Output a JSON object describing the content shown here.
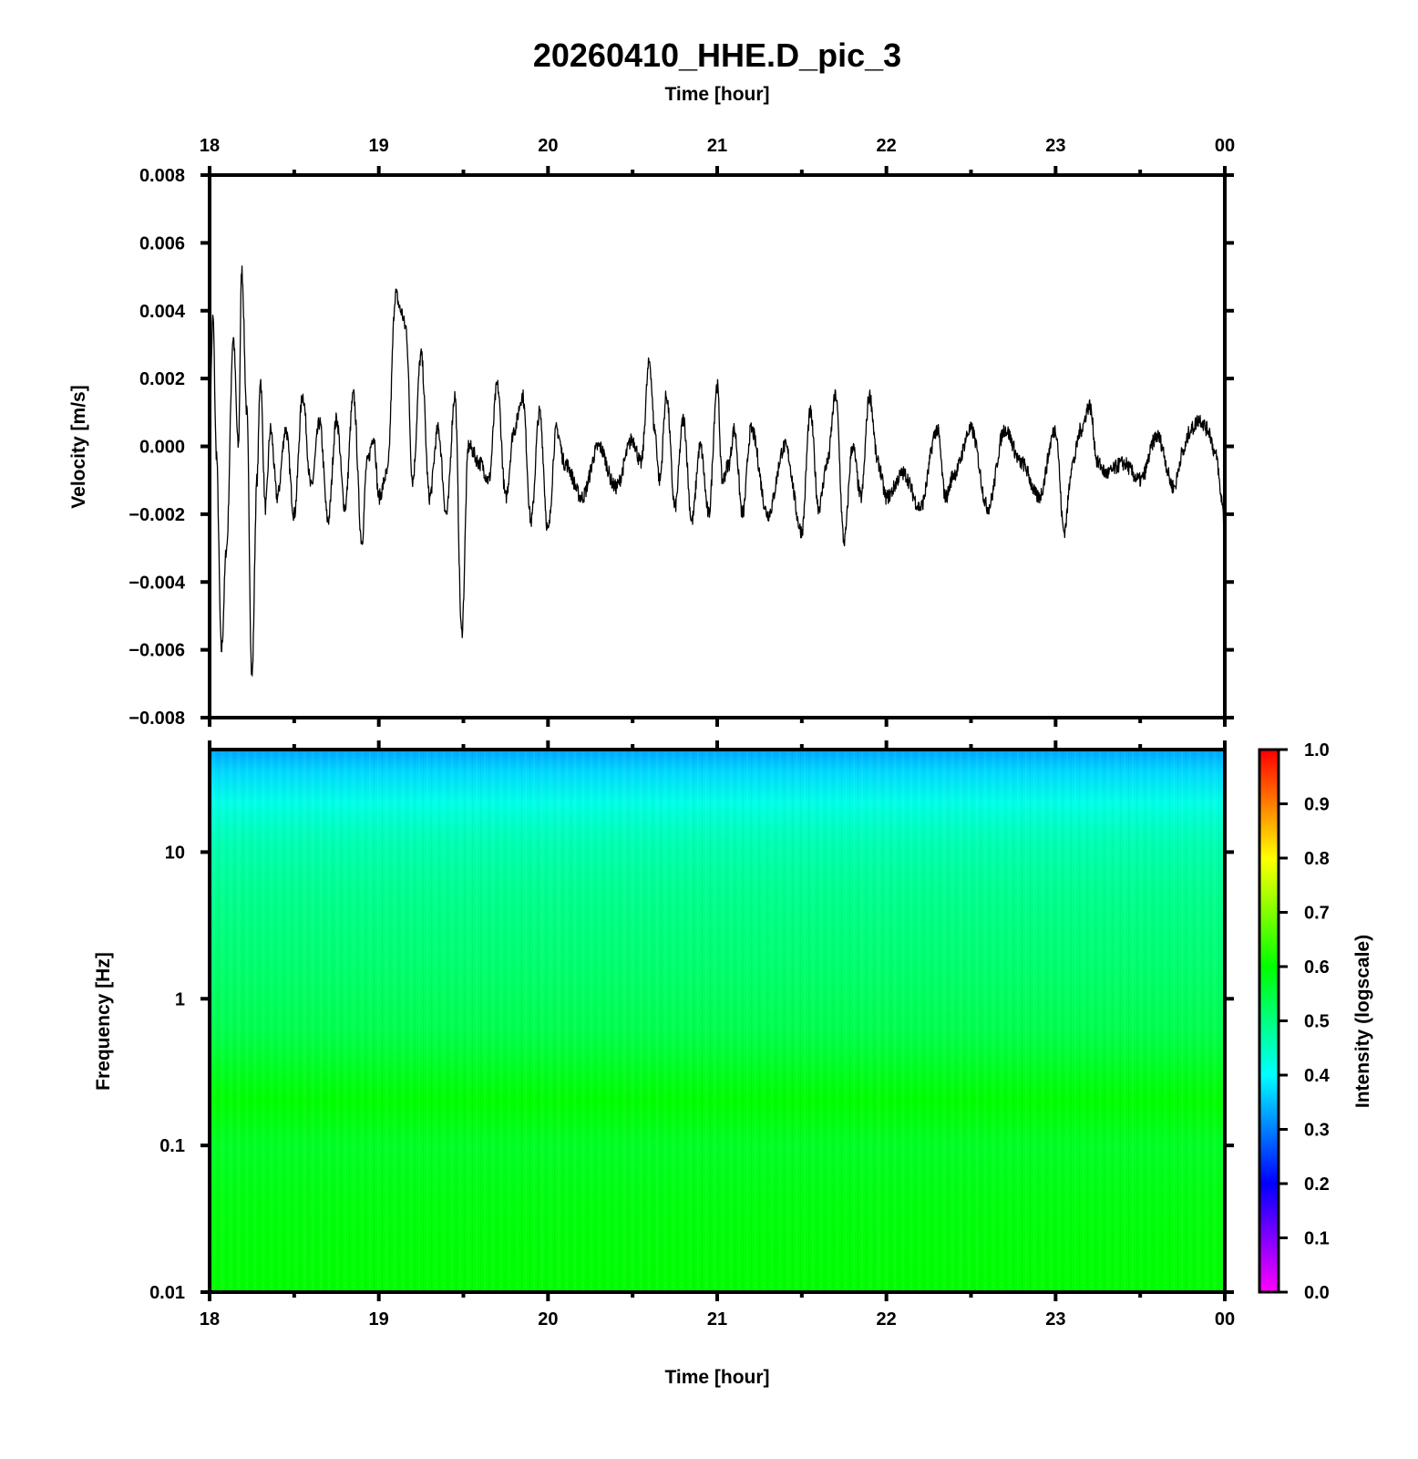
{
  "title": "20260410_HHE.D_pic_3",
  "chart_data": [
    {
      "type": "line",
      "panel": "waveform",
      "xlabel_top": "Time [hour]",
      "ylabel": "Velocity [m/s]",
      "x_ticks": [
        "18",
        "19",
        "20",
        "21",
        "22",
        "23",
        "00"
      ],
      "x_range_hours": [
        18,
        24
      ],
      "ylim": [
        -0.008,
        0.008
      ],
      "y_ticks": [
        {
          "v": 0.008,
          "label": "0.008"
        },
        {
          "v": 0.006,
          "label": "0.006"
        },
        {
          "v": 0.004,
          "label": "0.004"
        },
        {
          "v": 0.002,
          "label": "0.002"
        },
        {
          "v": 0.0,
          "label": "0.000"
        },
        {
          "v": -0.002,
          "label": "−0.002"
        },
        {
          "v": -0.004,
          "label": "−0.004"
        },
        {
          "v": -0.006,
          "label": "−0.006"
        },
        {
          "v": -0.008,
          "label": "−0.008"
        }
      ],
      "series_color": "#000000",
      "x": [
        18.0,
        18.02,
        18.04,
        18.07,
        18.1,
        18.14,
        18.17,
        18.19,
        18.22,
        18.25,
        18.28,
        18.3,
        18.33,
        18.36,
        18.4,
        18.45,
        18.5,
        18.55,
        18.6,
        18.65,
        18.7,
        18.75,
        18.8,
        18.85,
        18.9,
        18.93,
        18.97,
        19.0,
        19.05,
        19.1,
        19.13,
        19.16,
        19.2,
        19.25,
        19.3,
        19.35,
        19.4,
        19.45,
        19.49,
        19.53,
        19.6,
        19.65,
        19.7,
        19.75,
        19.8,
        19.85,
        19.9,
        19.95,
        20.0,
        20.05,
        20.1,
        20.2,
        20.3,
        20.4,
        20.5,
        20.55,
        20.6,
        20.63,
        20.66,
        20.7,
        20.75,
        20.8,
        20.85,
        20.9,
        20.95,
        21.0,
        21.03,
        21.07,
        21.1,
        21.15,
        21.2,
        21.3,
        21.4,
        21.5,
        21.55,
        21.6,
        21.65,
        21.7,
        21.75,
        21.8,
        21.85,
        21.9,
        21.95,
        22.0,
        22.1,
        22.2,
        22.3,
        22.35,
        22.4,
        22.5,
        22.6,
        22.7,
        22.8,
        22.9,
        23.0,
        23.05,
        23.1,
        23.15,
        23.2,
        23.25,
        23.3,
        23.4,
        23.5,
        23.6,
        23.7,
        23.75,
        23.8,
        23.85,
        23.9,
        23.95,
        23.98,
        24.0
      ],
      "y": [
        0.0008,
        0.0038,
        -0.0002,
        -0.006,
        -0.003,
        0.0032,
        0.0,
        0.0052,
        0.001,
        -0.0068,
        -0.001,
        0.002,
        -0.0018,
        0.0005,
        -0.0015,
        0.0005,
        -0.002,
        0.0015,
        -0.0012,
        0.0007,
        -0.0022,
        0.0008,
        -0.0018,
        0.0015,
        -0.0028,
        -0.0005,
        0.0003,
        -0.0015,
        -0.0008,
        0.0045,
        0.004,
        0.0035,
        -0.001,
        0.0027,
        -0.0015,
        0.0005,
        -0.002,
        0.0015,
        -0.0055,
        0.0,
        -0.0005,
        -0.001,
        0.0018,
        -0.0015,
        0.0005,
        0.0015,
        -0.0022,
        0.001,
        -0.0025,
        0.0005,
        -0.0005,
        -0.0015,
        0.0,
        -0.0012,
        0.0002,
        -0.0005,
        0.0025,
        0.0005,
        -0.001,
        0.0015,
        -0.0018,
        0.0008,
        -0.0022,
        0.0,
        -0.002,
        0.0018,
        -0.001,
        -0.0005,
        0.0005,
        -0.002,
        0.0005,
        -0.002,
        0.0,
        -0.0025,
        0.001,
        -0.0018,
        -0.0005,
        0.0015,
        -0.0028,
        0.0,
        -0.0015,
        0.0015,
        -0.0005,
        -0.0015,
        -0.0008,
        -0.0018,
        0.0005,
        -0.0015,
        -0.0008,
        0.0005,
        -0.0018,
        0.0005,
        -0.0005,
        -0.0015,
        0.0005,
        -0.0025,
        -0.0005,
        0.0005,
        0.0012,
        -0.0005,
        -0.0008,
        -0.0005,
        -0.001,
        0.0003,
        -0.0012,
        -0.0002,
        0.0005,
        0.0008,
        0.0005,
        -0.0003,
        -0.0015,
        -0.0025
      ]
    },
    {
      "type": "heatmap",
      "panel": "spectrogram",
      "xlabel": "Time [hour]",
      "ylabel": "Frequency [Hz]",
      "x_ticks": [
        "18",
        "19",
        "20",
        "21",
        "22",
        "23",
        "00"
      ],
      "y_scale": "log",
      "ylim": [
        0.01,
        50
      ],
      "y_ticks": [
        {
          "v": 10,
          "label": "10"
        },
        {
          "v": 1,
          "label": "1"
        },
        {
          "v": 0.1,
          "label": "0.1"
        },
        {
          "v": 0.01,
          "label": "0.01"
        }
      ],
      "intensity_profile": [
        {
          "f": 50,
          "i": 0.33
        },
        {
          "f": 35,
          "i": 0.37
        },
        {
          "f": 22,
          "i": 0.42
        },
        {
          "f": 12,
          "i": 0.46
        },
        {
          "f": 5,
          "i": 0.49
        },
        {
          "f": 2,
          "i": 0.51
        },
        {
          "f": 0.6,
          "i": 0.54
        },
        {
          "f": 0.35,
          "i": 0.57
        },
        {
          "f": 0.2,
          "i": 0.6
        },
        {
          "f": 0.1,
          "i": 0.57
        },
        {
          "f": 0.04,
          "i": 0.59
        },
        {
          "f": 0.01,
          "i": 0.6
        }
      ],
      "colorbar": {
        "label": "Intensity (logscale)",
        "range": [
          0.0,
          1.0
        ],
        "ticks": [
          "0.0",
          "0.1",
          "0.2",
          "0.3",
          "0.4",
          "0.5",
          "0.6",
          "0.7",
          "0.8",
          "0.9",
          "1.0"
        ],
        "colormap": [
          "#ff00ff",
          "#8000ff",
          "#0000ff",
          "#0080ff",
          "#00ffff",
          "#00ff80",
          "#00ff00",
          "#80ff00",
          "#ffff00",
          "#ff8000",
          "#ff0000"
        ]
      }
    }
  ]
}
